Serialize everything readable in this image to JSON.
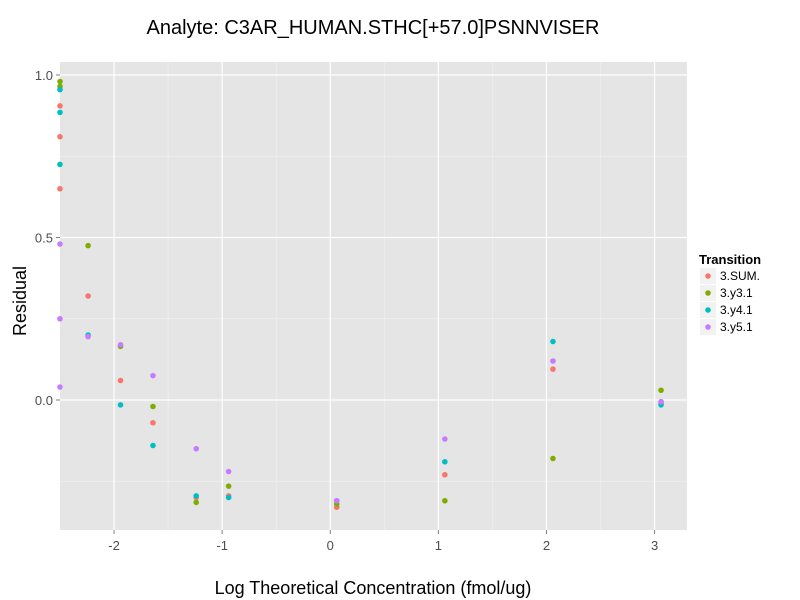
{
  "chart_data": {
    "type": "scatter",
    "title": "Analyte: C3AR_HUMAN.STHC[+57.0]PSNNVISER",
    "xlabel": "Log Theoretical Concentration (fmol/ug)",
    "ylabel": "Residual",
    "xlim": [
      -2.5,
      3.3
    ],
    "ylim": [
      -0.4,
      1.04
    ],
    "x_ticks": [
      -2,
      -1,
      0,
      1,
      2,
      3
    ],
    "x_tick_labels": [
      "-2",
      "-1",
      "0",
      "1",
      "2",
      "3"
    ],
    "y_ticks": [
      0.0,
      0.5,
      1.0
    ],
    "y_tick_labels": [
      "0.0",
      "0.5",
      "1.0"
    ],
    "grid": true,
    "legend": {
      "title": "Transition",
      "placement": "right"
    },
    "series": [
      {
        "name": "3.SUM.",
        "color": "#F8766D",
        "points": [
          [
            -2.5,
            0.905
          ],
          [
            -2.5,
            0.81
          ],
          [
            -2.5,
            0.65
          ],
          [
            -2.24,
            0.32
          ],
          [
            -1.94,
            0.06
          ],
          [
            -1.64,
            -0.07
          ],
          [
            -1.24,
            -0.3
          ],
          [
            -0.94,
            -0.295
          ],
          [
            0.06,
            -0.33
          ],
          [
            1.06,
            -0.23
          ],
          [
            2.06,
            0.095
          ],
          [
            3.06,
            -0.01
          ]
        ]
      },
      {
        "name": "3.y3.1",
        "color": "#7CAE00",
        "points": [
          [
            -2.5,
            0.98
          ],
          [
            -2.5,
            0.965
          ],
          [
            -2.24,
            0.475
          ],
          [
            -1.94,
            0.165
          ],
          [
            -1.64,
            -0.02
          ],
          [
            -1.24,
            -0.315
          ],
          [
            -0.94,
            -0.265
          ],
          [
            0.06,
            -0.32
          ],
          [
            1.06,
            -0.31
          ],
          [
            2.06,
            -0.18
          ],
          [
            3.06,
            0.03
          ]
        ]
      },
      {
        "name": "3.y4.1",
        "color": "#00BFC4",
        "points": [
          [
            -2.5,
            0.955
          ],
          [
            -2.5,
            0.885
          ],
          [
            -2.5,
            0.725
          ],
          [
            -2.24,
            0.2
          ],
          [
            -1.94,
            -0.015
          ],
          [
            -1.64,
            -0.14
          ],
          [
            -1.24,
            -0.295
          ],
          [
            -0.94,
            -0.3
          ],
          [
            0.06,
            -0.31
          ],
          [
            1.06,
            -0.19
          ],
          [
            2.06,
            0.18
          ],
          [
            3.06,
            -0.015
          ]
        ]
      },
      {
        "name": "3.y5.1",
        "color": "#C77CFF",
        "points": [
          [
            -2.5,
            0.48
          ],
          [
            -2.5,
            0.25
          ],
          [
            -2.5,
            0.04
          ],
          [
            -2.24,
            0.195
          ],
          [
            -1.94,
            0.17
          ],
          [
            -1.64,
            0.075
          ],
          [
            -1.24,
            -0.15
          ],
          [
            -0.94,
            -0.22
          ],
          [
            0.06,
            -0.31
          ],
          [
            1.06,
            -0.12
          ],
          [
            2.06,
            0.12
          ],
          [
            3.06,
            -0.005
          ]
        ]
      }
    ]
  }
}
